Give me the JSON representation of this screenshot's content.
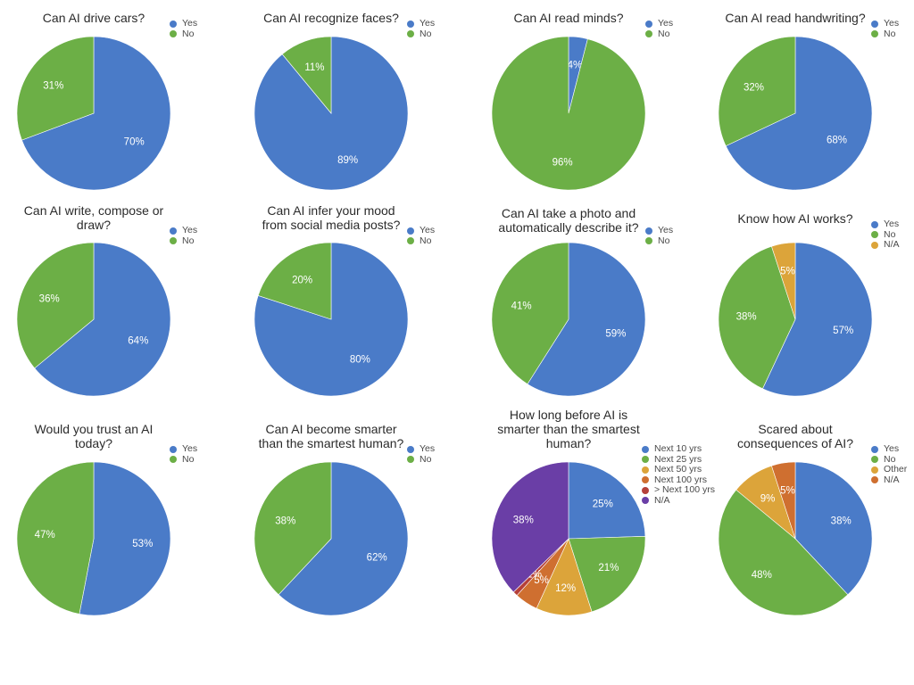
{
  "palette": {
    "Yes": "#4a7bc8",
    "No": "#6caf46",
    "N/A_gold": "#dca43a",
    "Other": "#dca43a",
    "N/A_orange": "#cf6f30"
  },
  "chart_data": [
    {
      "type": "pie",
      "title": "Can AI drive cars?",
      "slices": [
        {
          "label": "Yes",
          "value": 70,
          "text": "70%",
          "color": "#4a7bc8"
        },
        {
          "label": "No",
          "value": 31,
          "text": "31%",
          "color": "#6caf46"
        }
      ]
    },
    {
      "type": "pie",
      "title": "Can AI recognize faces?",
      "slices": [
        {
          "label": "Yes",
          "value": 89,
          "text": "89%",
          "color": "#4a7bc8"
        },
        {
          "label": "No",
          "value": 11,
          "text": "11%",
          "color": "#6caf46"
        }
      ]
    },
    {
      "type": "pie",
      "title": "Can AI read minds?",
      "slices": [
        {
          "label": "Yes",
          "value": 4,
          "text": "4%",
          "color": "#4a7bc8"
        },
        {
          "label": "No",
          "value": 96,
          "text": "96%",
          "color": "#6caf46"
        }
      ]
    },
    {
      "type": "pie",
      "title": "Can AI read handwriting?",
      "slices": [
        {
          "label": "Yes",
          "value": 68,
          "text": "68%",
          "color": "#4a7bc8"
        },
        {
          "label": "No",
          "value": 32,
          "text": "32%",
          "color": "#6caf46"
        }
      ]
    },
    {
      "type": "pie",
      "title": "Can AI write, compose or draw?",
      "title_lines": [
        "Can AI write, compose or",
        "draw?"
      ],
      "slices": [
        {
          "label": "Yes",
          "value": 64,
          "text": "64%",
          "color": "#4a7bc8"
        },
        {
          "label": "No",
          "value": 36,
          "text": "36%",
          "color": "#6caf46"
        }
      ]
    },
    {
      "type": "pie",
      "title": "Can AI infer your mood from social media posts?",
      "title_lines": [
        "Can AI infer your mood",
        "from social media posts?"
      ],
      "slices": [
        {
          "label": "Yes",
          "value": 80,
          "text": "80%",
          "color": "#4a7bc8"
        },
        {
          "label": "No",
          "value": 20,
          "text": "20%",
          "color": "#6caf46"
        }
      ]
    },
    {
      "type": "pie",
      "title": "Can AI take a photo and automatically describe it?",
      "title_lines": [
        "Can AI take a photo and",
        "automatically describe it?"
      ],
      "slices": [
        {
          "label": "Yes",
          "value": 59,
          "text": "59%",
          "color": "#4a7bc8"
        },
        {
          "label": "No",
          "value": 41,
          "text": "41%",
          "color": "#6caf46"
        }
      ]
    },
    {
      "type": "pie",
      "title": "Know how AI works?",
      "slices": [
        {
          "label": "Yes",
          "value": 57,
          "text": "57%",
          "color": "#4a7bc8"
        },
        {
          "label": "No",
          "value": 38,
          "text": "38%",
          "color": "#6caf46"
        },
        {
          "label": "N/A",
          "value": 5,
          "text": "5%",
          "color": "#dca43a"
        }
      ]
    },
    {
      "type": "pie",
      "title": "Would you trust an AI today?",
      "title_lines": [
        "Would you trust an AI",
        "today?"
      ],
      "slices": [
        {
          "label": "Yes",
          "value": 53,
          "text": "53%",
          "color": "#4a7bc8"
        },
        {
          "label": "No",
          "value": 47,
          "text": "47%",
          "color": "#6caf46"
        }
      ]
    },
    {
      "type": "pie",
      "title": "Can AI become smarter than the smartest human?",
      "title_lines": [
        "Can AI become smarter",
        "than the smartest human?"
      ],
      "slices": [
        {
          "label": "Yes",
          "value": 62,
          "text": "62%",
          "color": "#4a7bc8"
        },
        {
          "label": "No",
          "value": 38,
          "text": "38%",
          "color": "#6caf46"
        }
      ]
    },
    {
      "type": "pie",
      "title": "How long before AI is smarter than the smartest human?",
      "title_lines": [
        "How long before AI is",
        "smarter than the smartest",
        "human?"
      ],
      "slices": [
        {
          "label": "Next 10 yrs",
          "value": 25,
          "text": "25%",
          "color": "#4a7bc8"
        },
        {
          "label": "Next 25 yrs",
          "value": 21,
          "text": "21%",
          "color": "#6caf46"
        },
        {
          "label": "Next 50 yrs",
          "value": 12,
          "text": "12%",
          "color": "#dca43a"
        },
        {
          "label": "Next 100 yrs",
          "value": 5,
          "text": "5%",
          "color": "#cf6f30"
        },
        {
          "label": "> Next 100 yrs",
          "value": 1,
          "text": "1%",
          "color": "#b5403a"
        },
        {
          "label": "N/A",
          "value": 38,
          "text": "38%",
          "color": "#6a3ea6"
        }
      ]
    },
    {
      "type": "pie",
      "title": "Scared about consequences of AI?",
      "title_lines": [
        "Scared about",
        "consequences of AI?"
      ],
      "slices": [
        {
          "label": "Yes",
          "value": 38,
          "text": "38%",
          "color": "#4a7bc8"
        },
        {
          "label": "No",
          "value": 48,
          "text": "48%",
          "color": "#6caf46"
        },
        {
          "label": "Other",
          "value": 9,
          "text": "9%",
          "color": "#dca43a"
        },
        {
          "label": "N/A",
          "value": 5,
          "text": "5%",
          "color": "#cf6f30"
        }
      ]
    }
  ]
}
